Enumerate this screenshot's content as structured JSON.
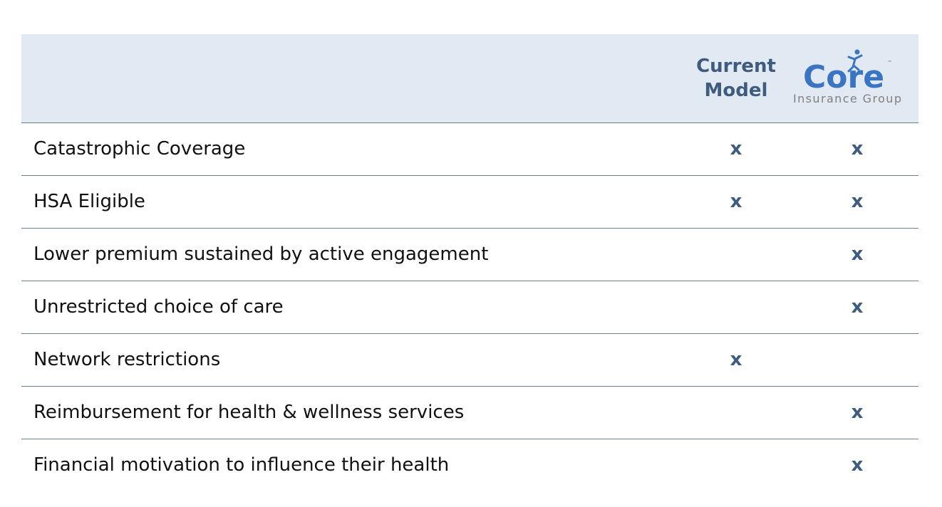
{
  "header": {
    "columns": [
      "Current Model"
    ],
    "logo": {
      "name": "Core",
      "trademark": "™",
      "subtitle": "Insurance Group"
    }
  },
  "table": {
    "rows": [
      [
        "Catastrophic Coverage",
        "x",
        "x"
      ],
      [
        "HSA Eligible",
        "x",
        "x"
      ],
      [
        "Lower premium sustained by active engagement",
        null,
        "x"
      ],
      [
        "Unrestricted choice of care",
        null,
        "x"
      ],
      [
        "Network restrictions",
        "x",
        null
      ],
      [
        "Reimbursement for health & wellness services",
        null,
        "x"
      ],
      [
        "Financial motivation to influence their health",
        null,
        "x"
      ]
    ]
  }
}
